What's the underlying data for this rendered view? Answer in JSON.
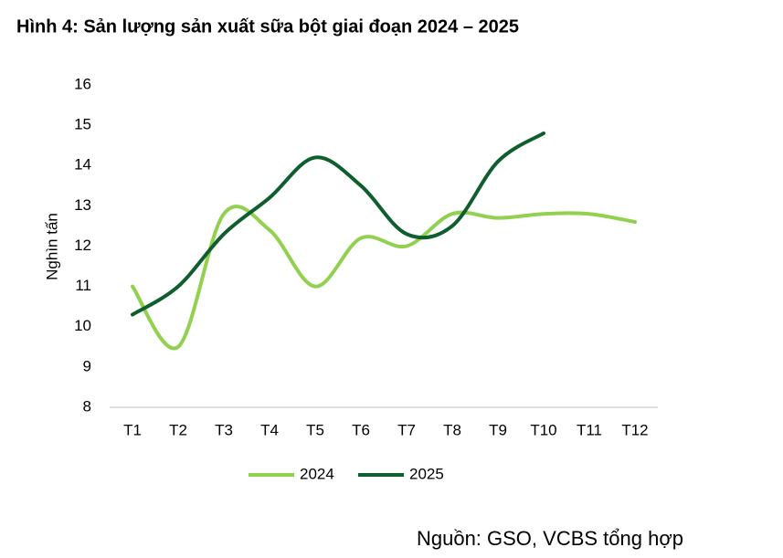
{
  "chart_data": {
    "type": "line",
    "title": "Hình 4: Sản lượng sản xuất sữa bột giai đoạn 2024 – 2025",
    "y_label": "Nghìn tấn",
    "source": "Nguồn: GSO, VCBS tổng hợp",
    "categories": [
      "T1",
      "T2",
      "T3",
      "T4",
      "T5",
      "T6",
      "T7",
      "T8",
      "T9",
      "T10",
      "T11",
      "T12"
    ],
    "series": [
      {
        "name": "2024",
        "color": "#92d050",
        "values": [
          11.0,
          9.5,
          12.8,
          12.4,
          11.0,
          12.2,
          12.0,
          12.8,
          12.7,
          12.8,
          12.8,
          12.6
        ]
      },
      {
        "name": "2025",
        "color": "#0f5e2e",
        "values": [
          10.3,
          11.0,
          12.3,
          13.2,
          14.2,
          13.5,
          12.3,
          12.5,
          14.1,
          14.8,
          null,
          null
        ]
      }
    ],
    "ylim": [
      8,
      16
    ],
    "yticks": [
      8,
      9,
      10,
      11,
      12,
      13,
      14,
      15,
      16
    ],
    "grid": false,
    "legend": "bottom"
  }
}
